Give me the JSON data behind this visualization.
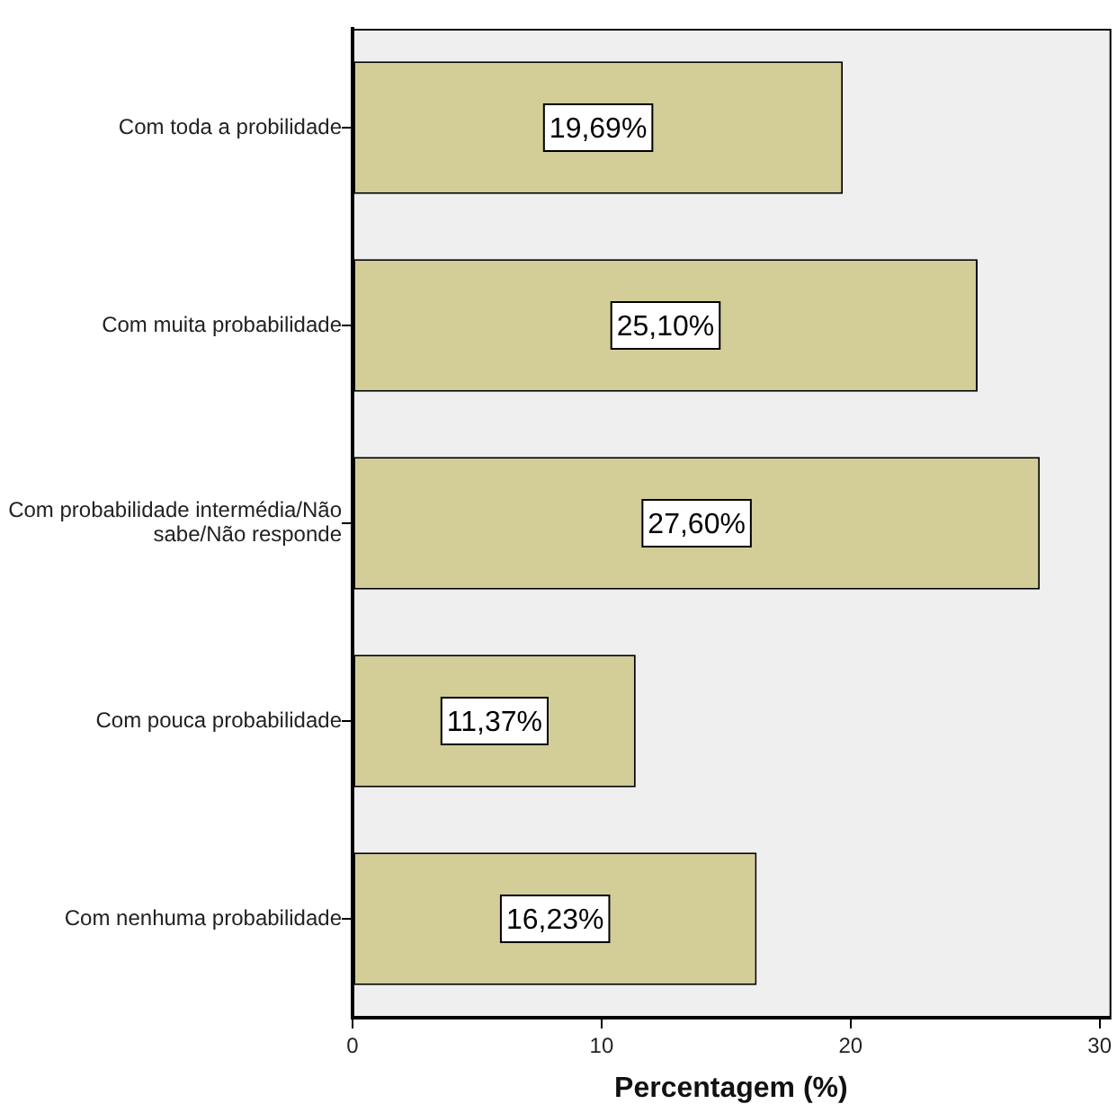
{
  "chart_data": {
    "type": "bar",
    "orientation": "horizontal",
    "xlabel": "Percentagem (%)",
    "categories": [
      "Com toda a probilidade",
      "Com muita probabilidade",
      "Com probabilidade intermédia/Não sabe/Não responde",
      "Com pouca probabilidade",
      "Com nenhuma probabilidade"
    ],
    "values": [
      19.69,
      25.1,
      27.6,
      11.37,
      16.23
    ],
    "value_labels": [
      "19,69%",
      "25,10%",
      "27,60%",
      "11,37%",
      "16,23%"
    ],
    "color": "#d3ce98",
    "xlim": [
      0,
      30.4
    ],
    "xticks": [
      0,
      10,
      20,
      30
    ],
    "grid": false,
    "legend": false
  }
}
